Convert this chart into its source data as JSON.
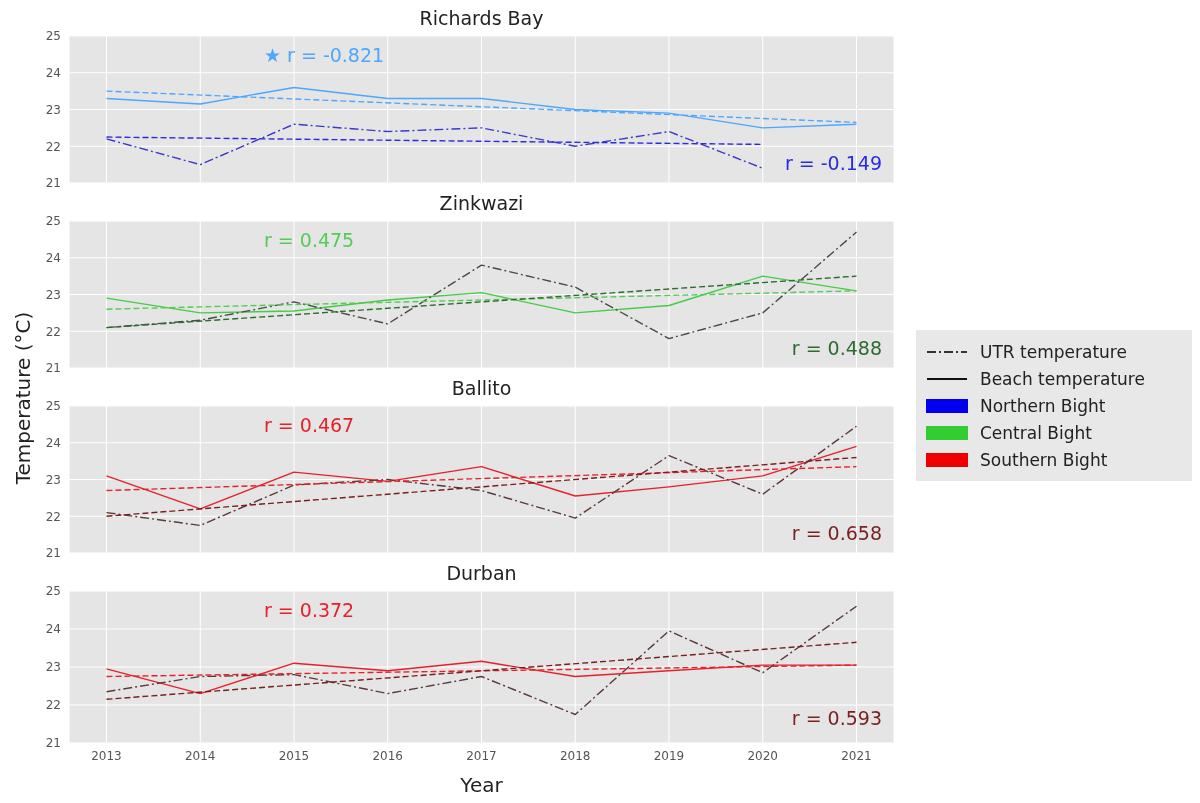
{
  "chart_data": [
    {
      "type": "line",
      "title": "Richards Bay",
      "x": [
        2013,
        2014,
        2015,
        2016,
        2017,
        2018,
        2019,
        2020,
        2021
      ],
      "xlim": [
        2012.6,
        2021.4
      ],
      "xticks": [
        2013,
        2014,
        2015,
        2016,
        2017,
        2018,
        2019,
        2020,
        2021
      ],
      "ylim": [
        21,
        25
      ],
      "yticks": [
        21,
        22,
        23,
        24,
        25
      ],
      "grid": true,
      "tick_labels": "y",
      "annotations": [
        "★ r = -0.821",
        "r = -0.149"
      ],
      "series": [
        {
          "color": "#4da6ff",
          "line_style": "solid",
          "values": [
            23.3,
            23.15,
            23.6,
            23.3,
            23.3,
            23.0,
            22.9,
            22.5,
            22.6
          ]
        },
        {
          "color": "#3a3acc",
          "line_style": "dashdot",
          "values": [
            22.2,
            21.5,
            22.6,
            22.4,
            22.5,
            22.0,
            22.4,
            21.4,
            null
          ]
        },
        {
          "type": "line",
          "color": "#4da6ff",
          "line_style": "dashed",
          "x": [
            2013,
            2021
          ],
          "values": [
            23.5,
            22.65
          ]
        },
        {
          "type": "line",
          "color": "#2a2ae0",
          "line_style": "dashed",
          "x": [
            2013,
            2020
          ],
          "values": [
            22.25,
            22.05
          ]
        }
      ]
    },
    {
      "type": "line",
      "title": "Zinkwazi",
      "x": [
        2013,
        2014,
        2015,
        2016,
        2017,
        2018,
        2019,
        2020,
        2021
      ],
      "xlim": [
        2012.6,
        2021.4
      ],
      "xticks": [
        2013,
        2014,
        2015,
        2016,
        2017,
        2018,
        2019,
        2020,
        2021
      ],
      "ylim": [
        21,
        25
      ],
      "yticks": [
        21,
        22,
        23,
        24,
        25
      ],
      "grid": true,
      "tick_labels": "y",
      "annotations": [
        "r = 0.475",
        "r = 0.488"
      ],
      "series": [
        {
          "color": "#44cc44",
          "line_style": "solid",
          "values": [
            22.9,
            22.5,
            22.55,
            22.85,
            23.05,
            22.5,
            22.7,
            23.5,
            23.1
          ]
        },
        {
          "color": "#4a4a4a",
          "line_style": "dashdot",
          "values": [
            22.1,
            22.3,
            22.8,
            22.2,
            23.8,
            23.2,
            21.8,
            22.5,
            24.7
          ]
        },
        {
          "type": "line",
          "color": "#55cc55",
          "line_style": "dashed",
          "x": [
            2013,
            2021
          ],
          "values": [
            22.6,
            23.1
          ]
        },
        {
          "type": "line",
          "color": "#2e6b2e",
          "line_style": "dashed",
          "x": [
            2013,
            2021
          ],
          "values": [
            22.1,
            23.5
          ]
        }
      ]
    },
    {
      "type": "line",
      "title": "Ballito",
      "x": [
        2013,
        2014,
        2015,
        2016,
        2017,
        2018,
        2019,
        2020,
        2021
      ],
      "xlim": [
        2012.6,
        2021.4
      ],
      "xticks": [
        2013,
        2014,
        2015,
        2016,
        2017,
        2018,
        2019,
        2020,
        2021
      ],
      "ylim": [
        21,
        25
      ],
      "yticks": [
        21,
        22,
        23,
        24,
        25
      ],
      "grid": true,
      "tick_labels": "y",
      "ylabel": "Temperature (°C)",
      "annotations": [
        "r = 0.467",
        "r = 0.658"
      ],
      "series": [
        {
          "color": "#e8202a",
          "line_style": "solid",
          "values": [
            23.1,
            22.2,
            23.2,
            22.95,
            23.35,
            22.55,
            22.8,
            23.1,
            23.9
          ]
        },
        {
          "color": "#5a3a3a",
          "line_style": "dashdot",
          "values": [
            22.1,
            21.75,
            22.85,
            23.0,
            22.7,
            21.95,
            23.65,
            22.6,
            24.45
          ]
        },
        {
          "type": "line",
          "color": "#e8202a",
          "line_style": "dashed",
          "x": [
            2013,
            2021
          ],
          "values": [
            22.7,
            23.35
          ]
        },
        {
          "type": "line",
          "color": "#7a1f1f",
          "line_style": "dashed",
          "x": [
            2013,
            2021
          ],
          "values": [
            22.0,
            23.6
          ]
        }
      ]
    },
    {
      "type": "line",
      "title": "Durban",
      "x": [
        2013,
        2014,
        2015,
        2016,
        2017,
        2018,
        2019,
        2020,
        2021
      ],
      "xlim": [
        2012.6,
        2021.4
      ],
      "xticks": [
        2013,
        2014,
        2015,
        2016,
        2017,
        2018,
        2019,
        2020,
        2021
      ],
      "ylim": [
        21,
        25
      ],
      "yticks": [
        21,
        22,
        23,
        24,
        25
      ],
      "grid": true,
      "xlabel": "Year",
      "annotations": [
        "r = 0.372",
        "r = 0.593"
      ],
      "series": [
        {
          "color": "#e8202a",
          "line_style": "solid",
          "values": [
            22.95,
            22.3,
            23.1,
            22.9,
            23.15,
            22.75,
            22.9,
            23.05,
            23.05
          ]
        },
        {
          "color": "#5a3a3a",
          "line_style": "dashdot",
          "values": [
            22.35,
            22.75,
            22.8,
            22.3,
            22.75,
            21.75,
            23.95,
            22.85,
            24.6
          ]
        },
        {
          "type": "line",
          "color": "#e8202a",
          "line_style": "dashed",
          "x": [
            2013,
            2021
          ],
          "values": [
            22.75,
            23.05
          ]
        },
        {
          "type": "line",
          "color": "#7a1f1f",
          "line_style": "dashed",
          "x": [
            2013,
            2021
          ],
          "values": [
            22.15,
            23.65
          ]
        }
      ]
    },
    {
      "type": "other",
      "annotations": [
        "UTR temperature",
        "Beach temperature",
        "Northern Bight",
        "Central Bight",
        "Southern Bight"
      ],
      "colors": [
        "#333333",
        "#111111",
        "#0000ee",
        "#33cc33",
        "#ee0000"
      ]
    }
  ]
}
